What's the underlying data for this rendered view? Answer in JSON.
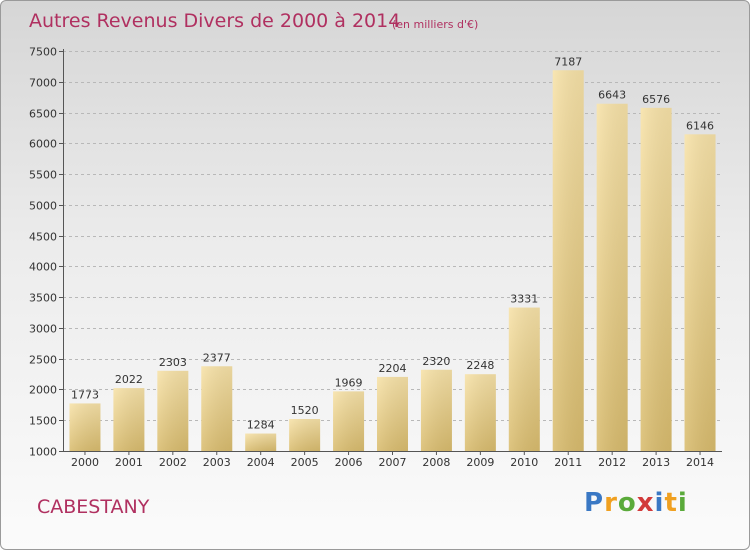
{
  "header": {
    "title": "Autres Revenus Divers de 2000 à 2014",
    "subtitle": "(en milliers d'€)"
  },
  "footer": {
    "city": "CABESTANY",
    "brand": "Proxiti"
  },
  "colors": {
    "accent": "#b03060",
    "bar_light": "#f7e2a8",
    "bar_dark": "#d9bc6e"
  },
  "chart_data": {
    "type": "bar",
    "title": "Autres Revenus Divers de 2000 à 2014",
    "subtitle": "(en milliers d'€)",
    "categories": [
      "2000",
      "2001",
      "2002",
      "2003",
      "2004",
      "2005",
      "2006",
      "2007",
      "2008",
      "2009",
      "2010",
      "2011",
      "2012",
      "2013",
      "2014"
    ],
    "values": [
      1773,
      2022,
      2303,
      2377,
      1284,
      1520,
      1969,
      2204,
      2320,
      2248,
      3331,
      7187,
      6643,
      6576,
      6146
    ],
    "ylim": [
      1000,
      7500
    ],
    "yticks": [
      1000,
      1500,
      2000,
      2500,
      3000,
      3500,
      4000,
      4500,
      5000,
      5500,
      6000,
      6500,
      7000,
      7500
    ],
    "grid": true,
    "legend": "none"
  }
}
